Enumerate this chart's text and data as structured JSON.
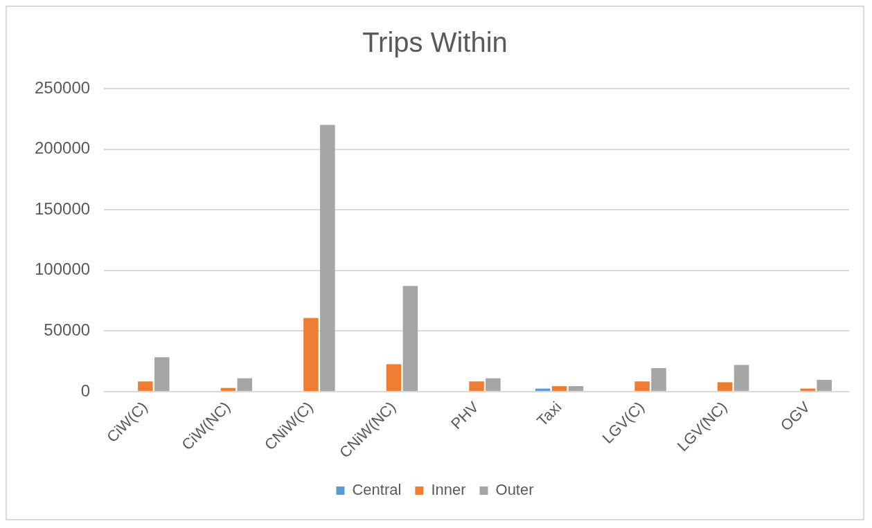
{
  "chart_data": {
    "type": "bar",
    "title": "Trips Within",
    "categories": [
      "CiW(C)",
      "CiW(NC)",
      "CNiW(C)",
      "CNiW(NC)",
      "PHV",
      "Taxi",
      "LGV(C)",
      "LGV(NC)",
      "OGV"
    ],
    "series": [
      {
        "name": "Central",
        "color": "#5b9bd5",
        "values": [
          0,
          0,
          0,
          0,
          0,
          2500,
          0,
          0,
          0
        ]
      },
      {
        "name": "Inner",
        "color": "#ed7d31",
        "values": [
          8400,
          3000,
          60700,
          22600,
          8400,
          4500,
          8400,
          7700,
          2500
        ]
      },
      {
        "name": "Outer",
        "color": "#a5a5a5",
        "values": [
          28400,
          11000,
          220000,
          87200,
          11000,
          4500,
          19400,
          22000,
          9700
        ]
      }
    ],
    "ylim": [
      0,
      250000
    ],
    "yticks": [
      0,
      50000,
      100000,
      150000,
      200000,
      250000
    ],
    "grid": "y",
    "legend": "bottom"
  }
}
